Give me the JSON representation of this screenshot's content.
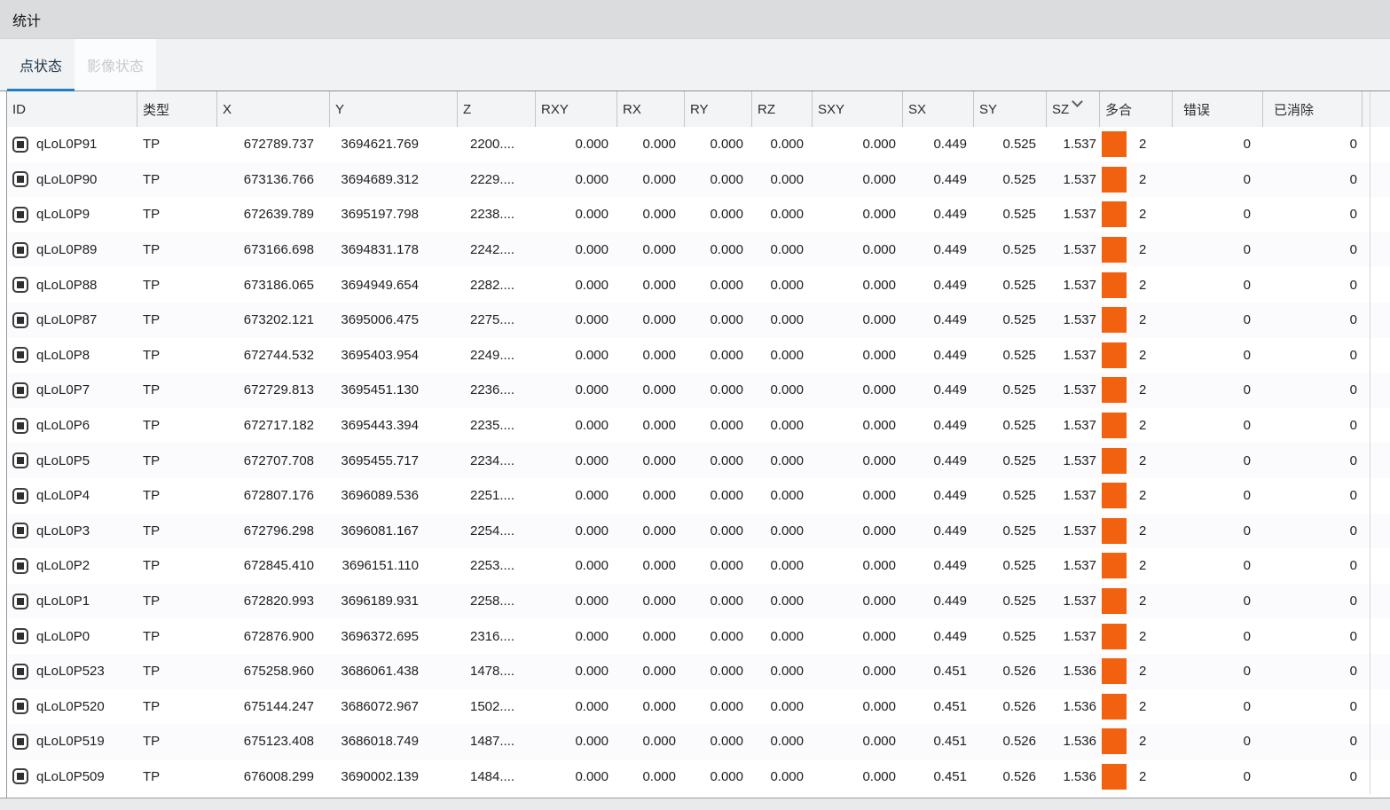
{
  "window": {
    "title": "统计"
  },
  "tabs": [
    {
      "label": "点状态",
      "active": true
    },
    {
      "label": "影像状态",
      "active": false
    }
  ],
  "colors": {
    "accent_blue": "#1e7fc2",
    "bar_orange": "#f2610f",
    "title_bar_bg": "#dadcde",
    "tab_strip_bg": "#f1f2f4",
    "header_bg": "#f3f4f6"
  },
  "icons": {
    "row_checkbox": "checked-square-icon",
    "sort_indicator": "chevron-down-icon"
  },
  "table": {
    "sorted_key": "sz",
    "columns": [
      {
        "key": "id",
        "label": "ID"
      },
      {
        "key": "type",
        "label": "类型"
      },
      {
        "key": "x",
        "label": "X"
      },
      {
        "key": "y",
        "label": "Y"
      },
      {
        "key": "z",
        "label": "Z"
      },
      {
        "key": "rxy",
        "label": "RXY"
      },
      {
        "key": "rx",
        "label": "RX"
      },
      {
        "key": "ry",
        "label": "RY"
      },
      {
        "key": "rz",
        "label": "RZ"
      },
      {
        "key": "sxy",
        "label": "SXY"
      },
      {
        "key": "sx",
        "label": "SX"
      },
      {
        "key": "sy",
        "label": "SY"
      },
      {
        "key": "sz",
        "label": "SZ"
      },
      {
        "key": "multi",
        "label": "多合"
      },
      {
        "key": "error",
        "label": "错误"
      },
      {
        "key": "eliminated",
        "label": "已消除"
      }
    ],
    "rows": [
      {
        "id": "qLoL0P91",
        "type": "TP",
        "x": "672789.737",
        "y": "3694621.769",
        "z": "2200....",
        "rxy": "0.000",
        "rx": "0.000",
        "ry": "0.000",
        "rz": "0.000",
        "sxy": "0.000",
        "sx": "0.449",
        "sy": "0.525",
        "sz": "1.537",
        "multi": "2",
        "error": "0",
        "eliminated": "0"
      },
      {
        "id": "qLoL0P90",
        "type": "TP",
        "x": "673136.766",
        "y": "3694689.312",
        "z": "2229....",
        "rxy": "0.000",
        "rx": "0.000",
        "ry": "0.000",
        "rz": "0.000",
        "sxy": "0.000",
        "sx": "0.449",
        "sy": "0.525",
        "sz": "1.537",
        "multi": "2",
        "error": "0",
        "eliminated": "0"
      },
      {
        "id": "qLoL0P9",
        "type": "TP",
        "x": "672639.789",
        "y": "3695197.798",
        "z": "2238....",
        "rxy": "0.000",
        "rx": "0.000",
        "ry": "0.000",
        "rz": "0.000",
        "sxy": "0.000",
        "sx": "0.449",
        "sy": "0.525",
        "sz": "1.537",
        "multi": "2",
        "error": "0",
        "eliminated": "0"
      },
      {
        "id": "qLoL0P89",
        "type": "TP",
        "x": "673166.698",
        "y": "3694831.178",
        "z": "2242....",
        "rxy": "0.000",
        "rx": "0.000",
        "ry": "0.000",
        "rz": "0.000",
        "sxy": "0.000",
        "sx": "0.449",
        "sy": "0.525",
        "sz": "1.537",
        "multi": "2",
        "error": "0",
        "eliminated": "0"
      },
      {
        "id": "qLoL0P88",
        "type": "TP",
        "x": "673186.065",
        "y": "3694949.654",
        "z": "2282....",
        "rxy": "0.000",
        "rx": "0.000",
        "ry": "0.000",
        "rz": "0.000",
        "sxy": "0.000",
        "sx": "0.449",
        "sy": "0.525",
        "sz": "1.537",
        "multi": "2",
        "error": "0",
        "eliminated": "0"
      },
      {
        "id": "qLoL0P87",
        "type": "TP",
        "x": "673202.121",
        "y": "3695006.475",
        "z": "2275....",
        "rxy": "0.000",
        "rx": "0.000",
        "ry": "0.000",
        "rz": "0.000",
        "sxy": "0.000",
        "sx": "0.449",
        "sy": "0.525",
        "sz": "1.537",
        "multi": "2",
        "error": "0",
        "eliminated": "0"
      },
      {
        "id": "qLoL0P8",
        "type": "TP",
        "x": "672744.532",
        "y": "3695403.954",
        "z": "2249....",
        "rxy": "0.000",
        "rx": "0.000",
        "ry": "0.000",
        "rz": "0.000",
        "sxy": "0.000",
        "sx": "0.449",
        "sy": "0.525",
        "sz": "1.537",
        "multi": "2",
        "error": "0",
        "eliminated": "0"
      },
      {
        "id": "qLoL0P7",
        "type": "TP",
        "x": "672729.813",
        "y": "3695451.130",
        "z": "2236....",
        "rxy": "0.000",
        "rx": "0.000",
        "ry": "0.000",
        "rz": "0.000",
        "sxy": "0.000",
        "sx": "0.449",
        "sy": "0.525",
        "sz": "1.537",
        "multi": "2",
        "error": "0",
        "eliminated": "0"
      },
      {
        "id": "qLoL0P6",
        "type": "TP",
        "x": "672717.182",
        "y": "3695443.394",
        "z": "2235....",
        "rxy": "0.000",
        "rx": "0.000",
        "ry": "0.000",
        "rz": "0.000",
        "sxy": "0.000",
        "sx": "0.449",
        "sy": "0.525",
        "sz": "1.537",
        "multi": "2",
        "error": "0",
        "eliminated": "0"
      },
      {
        "id": "qLoL0P5",
        "type": "TP",
        "x": "672707.708",
        "y": "3695455.717",
        "z": "2234....",
        "rxy": "0.000",
        "rx": "0.000",
        "ry": "0.000",
        "rz": "0.000",
        "sxy": "0.000",
        "sx": "0.449",
        "sy": "0.525",
        "sz": "1.537",
        "multi": "2",
        "error": "0",
        "eliminated": "0"
      },
      {
        "id": "qLoL0P4",
        "type": "TP",
        "x": "672807.176",
        "y": "3696089.536",
        "z": "2251....",
        "rxy": "0.000",
        "rx": "0.000",
        "ry": "0.000",
        "rz": "0.000",
        "sxy": "0.000",
        "sx": "0.449",
        "sy": "0.525",
        "sz": "1.537",
        "multi": "2",
        "error": "0",
        "eliminated": "0"
      },
      {
        "id": "qLoL0P3",
        "type": "TP",
        "x": "672796.298",
        "y": "3696081.167",
        "z": "2254....",
        "rxy": "0.000",
        "rx": "0.000",
        "ry": "0.000",
        "rz": "0.000",
        "sxy": "0.000",
        "sx": "0.449",
        "sy": "0.525",
        "sz": "1.537",
        "multi": "2",
        "error": "0",
        "eliminated": "0"
      },
      {
        "id": "qLoL0P2",
        "type": "TP",
        "x": "672845.410",
        "y": "3696151.110",
        "z": "2253....",
        "rxy": "0.000",
        "rx": "0.000",
        "ry": "0.000",
        "rz": "0.000",
        "sxy": "0.000",
        "sx": "0.449",
        "sy": "0.525",
        "sz": "1.537",
        "multi": "2",
        "error": "0",
        "eliminated": "0"
      },
      {
        "id": "qLoL0P1",
        "type": "TP",
        "x": "672820.993",
        "y": "3696189.931",
        "z": "2258....",
        "rxy": "0.000",
        "rx": "0.000",
        "ry": "0.000",
        "rz": "0.000",
        "sxy": "0.000",
        "sx": "0.449",
        "sy": "0.525",
        "sz": "1.537",
        "multi": "2",
        "error": "0",
        "eliminated": "0"
      },
      {
        "id": "qLoL0P0",
        "type": "TP",
        "x": "672876.900",
        "y": "3696372.695",
        "z": "2316....",
        "rxy": "0.000",
        "rx": "0.000",
        "ry": "0.000",
        "rz": "0.000",
        "sxy": "0.000",
        "sx": "0.449",
        "sy": "0.525",
        "sz": "1.537",
        "multi": "2",
        "error": "0",
        "eliminated": "0"
      },
      {
        "id": "qLoL0P523",
        "type": "TP",
        "x": "675258.960",
        "y": "3686061.438",
        "z": "1478....",
        "rxy": "0.000",
        "rx": "0.000",
        "ry": "0.000",
        "rz": "0.000",
        "sxy": "0.000",
        "sx": "0.451",
        "sy": "0.526",
        "sz": "1.536",
        "multi": "2",
        "error": "0",
        "eliminated": "0"
      },
      {
        "id": "qLoL0P520",
        "type": "TP",
        "x": "675144.247",
        "y": "3686072.967",
        "z": "1502....",
        "rxy": "0.000",
        "rx": "0.000",
        "ry": "0.000",
        "rz": "0.000",
        "sxy": "0.000",
        "sx": "0.451",
        "sy": "0.526",
        "sz": "1.536",
        "multi": "2",
        "error": "0",
        "eliminated": "0"
      },
      {
        "id": "qLoL0P519",
        "type": "TP",
        "x": "675123.408",
        "y": "3686018.749",
        "z": "1487....",
        "rxy": "0.000",
        "rx": "0.000",
        "ry": "0.000",
        "rz": "0.000",
        "sxy": "0.000",
        "sx": "0.451",
        "sy": "0.526",
        "sz": "1.536",
        "multi": "2",
        "error": "0",
        "eliminated": "0"
      },
      {
        "id": "qLoL0P509",
        "type": "TP",
        "x": "676008.299",
        "y": "3690002.139",
        "z": "1484....",
        "rxy": "0.000",
        "rx": "0.000",
        "ry": "0.000",
        "rz": "0.000",
        "sxy": "0.000",
        "sx": "0.451",
        "sy": "0.526",
        "sz": "1.536",
        "multi": "2",
        "error": "0",
        "eliminated": "0"
      }
    ]
  }
}
